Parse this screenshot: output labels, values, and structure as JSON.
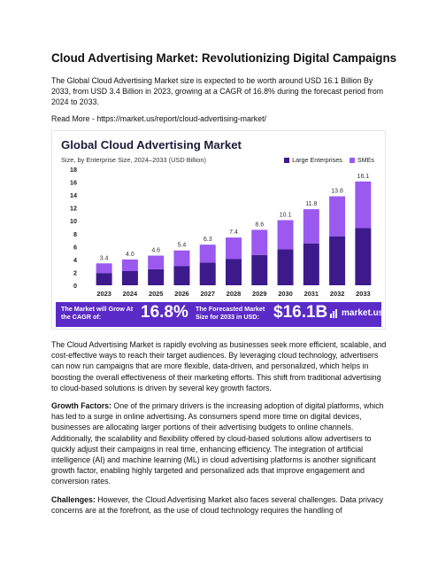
{
  "title": "Cloud Advertising Market: Revolutionizing Digital Campaigns",
  "intro": "The Global Cloud Advertising Market size is expected to be worth around USD 16.1 Billion By 2033, from USD 3.4 Billion in 2023, growing at a CAGR of 16.8% during the forecast period from 2024 to 2033.",
  "read_more": "Read More - https://market.us/report/cloud-advertising-market/",
  "infographic": {
    "title": "Global Cloud Advertising Market",
    "subtitle": "Size, by Enterprise Size, 2024–2033 (USD Billion)",
    "legend": [
      "Large Enterprises",
      "SMEs"
    ],
    "banner_cagr_label": "The Market will Grow At the CAGR of:",
    "banner_cagr_value": "16.8%",
    "banner_size_label": "The Forecasted Market Size for 2033 in USD:",
    "banner_size_value": "$16.1B",
    "logo_text": "market.us"
  },
  "colors": {
    "large": "#3d1a8c",
    "smes": "#9b59f0",
    "banner": "#5a2bc7",
    "title": "#1d1b3a"
  },
  "chart_data": {
    "type": "bar",
    "stacked": true,
    "title": "Global Cloud Advertising Market",
    "subtitle": "Size, by Enterprise Size, 2024–2033 (USD Billion)",
    "categories": [
      "2023",
      "2024",
      "2025",
      "2026",
      "2027",
      "2028",
      "2029",
      "2030",
      "2031",
      "2032",
      "2033"
    ],
    "totals": [
      3.4,
      4.0,
      4.6,
      5.4,
      6.3,
      7.4,
      8.6,
      10.1,
      11.8,
      13.8,
      16.1
    ],
    "total_labels": [
      "3.4",
      "4.0",
      "4.6",
      "5.4",
      "6.3",
      "7.4",
      "8.6",
      "10.1",
      "11.8",
      "13.8",
      "16.1"
    ],
    "series": [
      {
        "name": "Large Enterprises",
        "values": [
          1.9,
          2.2,
          2.5,
          3.0,
          3.5,
          4.1,
          4.7,
          5.6,
          6.5,
          7.6,
          8.9
        ]
      },
      {
        "name": "SMEs",
        "values": [
          1.5,
          1.8,
          2.1,
          2.4,
          2.8,
          3.3,
          3.9,
          4.5,
          5.3,
          6.2,
          7.2
        ]
      }
    ],
    "yticks": [
      "0",
      "2",
      "4",
      "6",
      "8",
      "10",
      "12",
      "14",
      "16",
      "18"
    ],
    "ylim": [
      0,
      18
    ],
    "grid": false,
    "legend_position": "top-right"
  },
  "para1": "The Cloud Advertising Market is rapidly evolving as businesses seek more efficient, scalable, and cost-effective ways to reach their target audiences. By leveraging cloud technology, advertisers can now run campaigns that are more flexible, data-driven, and personalized, which helps in boosting the overall effectiveness of their marketing efforts. This shift from traditional advertising to cloud-based solutions is driven by several key growth factors.",
  "growth_label": "Growth Factors:",
  "growth_text": " One of the primary drivers is the increasing adoption of digital platforms, which has led to a surge in online advertising. As consumers spend more time on digital devices, businesses are allocating larger portions of their advertising budgets to online channels. Additionally, the scalability and flexibility offered by cloud-based solutions allow advertisers to quickly adjust their campaigns in real time, enhancing efficiency. The integration of artificial intelligence (AI) and machine learning (ML) in cloud advertising platforms is another significant growth factor, enabling highly targeted and personalized ads that improve engagement and conversion rates.",
  "challenges_label": "Challenges:",
  "challenges_text": " However, the Cloud Advertising Market also faces several challenges. Data privacy concerns are at the forefront, as the use of cloud technology requires the handling of"
}
